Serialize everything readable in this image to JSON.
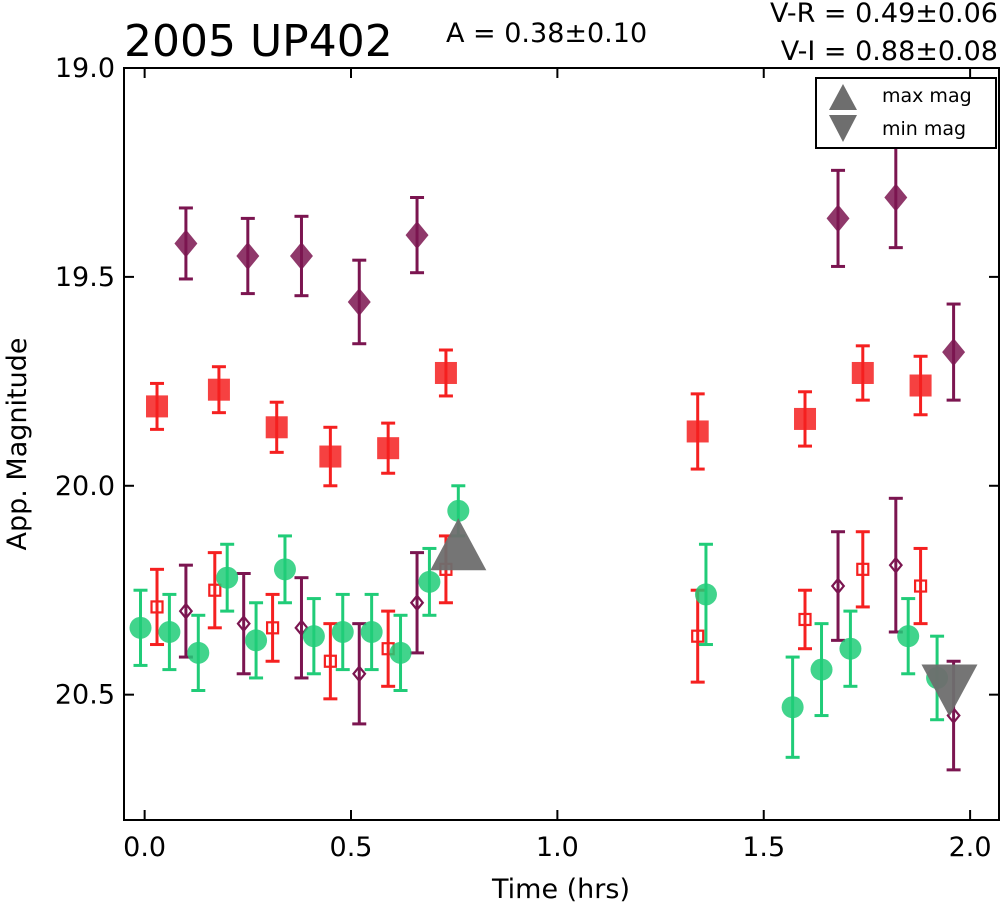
{
  "chart_data": {
    "type": "scatter",
    "title": "2005 UP402",
    "amplitude_text": "A  = 0.38±0.10",
    "color_text": [
      "V-R = 0.49±0.06",
      "V-I  = 0.88±0.08"
    ],
    "xlabel": "Time (hrs)",
    "ylabel": "App. Magnitude",
    "xlim": [
      -0.05,
      2.07
    ],
    "ylim": [
      20.8,
      19.0
    ],
    "y_inverted": true,
    "x_ticks": [
      0.0,
      0.5,
      1.0,
      1.5,
      2.0
    ],
    "x_tick_labels": [
      "0.0",
      "0.5",
      "1.0",
      "1.5",
      "2.0"
    ],
    "y_ticks": [
      19.0,
      19.5,
      20.0,
      20.5
    ],
    "y_tick_labels": [
      "19.0",
      "19.5",
      "20.0",
      "20.5"
    ],
    "grid": false,
    "legend": {
      "position": "top-right",
      "entries": [
        {
          "label": "max mag",
          "marker": "triangle-up"
        },
        {
          "label": "min mag",
          "marker": "triangle-down"
        }
      ]
    },
    "colors": {
      "purple": "#7b1550",
      "red": "#f52020",
      "green": "#20cc78",
      "gray": "#6e6e6e"
    },
    "series": [
      {
        "marker": "diamond",
        "color": "#7b1550",
        "fill": true,
        "x": [
          0.1,
          0.25,
          0.38,
          0.52,
          0.66,
          1.68,
          1.82,
          1.96
        ],
        "y": [
          19.42,
          19.45,
          19.45,
          19.56,
          19.4,
          19.36,
          19.31,
          19.68
        ],
        "err": [
          0.085,
          0.09,
          0.095,
          0.1,
          0.09,
          0.115,
          0.12,
          0.115
        ]
      },
      {
        "marker": "square",
        "color": "#f52020",
        "fill": true,
        "x": [
          0.03,
          0.18,
          0.32,
          0.45,
          0.59,
          0.73,
          1.34,
          1.6,
          1.74,
          1.88
        ],
        "y": [
          19.81,
          19.77,
          19.86,
          19.93,
          19.91,
          19.73,
          19.87,
          19.84,
          19.73,
          19.76
        ],
        "err": [
          0.055,
          0.055,
          0.06,
          0.07,
          0.06,
          0.055,
          0.09,
          0.065,
          0.065,
          0.07
        ]
      },
      {
        "marker": "diamond",
        "color": "#7b1550",
        "fill": false,
        "x": [
          0.1,
          0.24,
          0.38,
          0.52,
          0.66,
          1.68,
          1.82,
          1.96
        ],
        "y": [
          20.3,
          20.33,
          20.34,
          20.45,
          20.28,
          20.24,
          20.19,
          20.55
        ],
        "err": [
          0.11,
          0.12,
          0.12,
          0.12,
          0.12,
          0.13,
          0.16,
          0.13
        ]
      },
      {
        "marker": "square",
        "color": "#f52020",
        "fill": false,
        "x": [
          0.03,
          0.17,
          0.31,
          0.45,
          0.59,
          0.73,
          1.34,
          1.6,
          1.74,
          1.88
        ],
        "y": [
          20.29,
          20.25,
          20.34,
          20.42,
          20.39,
          20.2,
          20.36,
          20.32,
          20.2,
          20.24
        ],
        "err": [
          0.09,
          0.09,
          0.08,
          0.09,
          0.09,
          0.08,
          0.11,
          0.07,
          0.09,
          0.09
        ]
      },
      {
        "marker": "circle",
        "color": "#20cc78",
        "fill": true,
        "x": [
          -0.01,
          0.06,
          0.13,
          0.2,
          0.27,
          0.34,
          0.41,
          0.48,
          0.55,
          0.62,
          0.69,
          0.76,
          1.36,
          1.57,
          1.64,
          1.71,
          1.85,
          1.92
        ],
        "y": [
          20.34,
          20.35,
          20.4,
          20.22,
          20.37,
          20.2,
          20.36,
          20.35,
          20.35,
          20.4,
          20.23,
          20.06,
          20.26,
          20.53,
          20.44,
          20.39,
          20.36,
          20.46
        ],
        "err": [
          0.09,
          0.09,
          0.09,
          0.08,
          0.09,
          0.08,
          0.09,
          0.09,
          0.09,
          0.09,
          0.08,
          0.06,
          0.12,
          0.12,
          0.11,
          0.09,
          0.09,
          0.1
        ]
      }
    ],
    "extremes": [
      {
        "label": "max mag",
        "marker": "triangle-up",
        "x": 0.76,
        "y": 20.14
      },
      {
        "label": "min mag",
        "marker": "triangle-down",
        "x": 1.95,
        "y": 20.49
      }
    ]
  }
}
